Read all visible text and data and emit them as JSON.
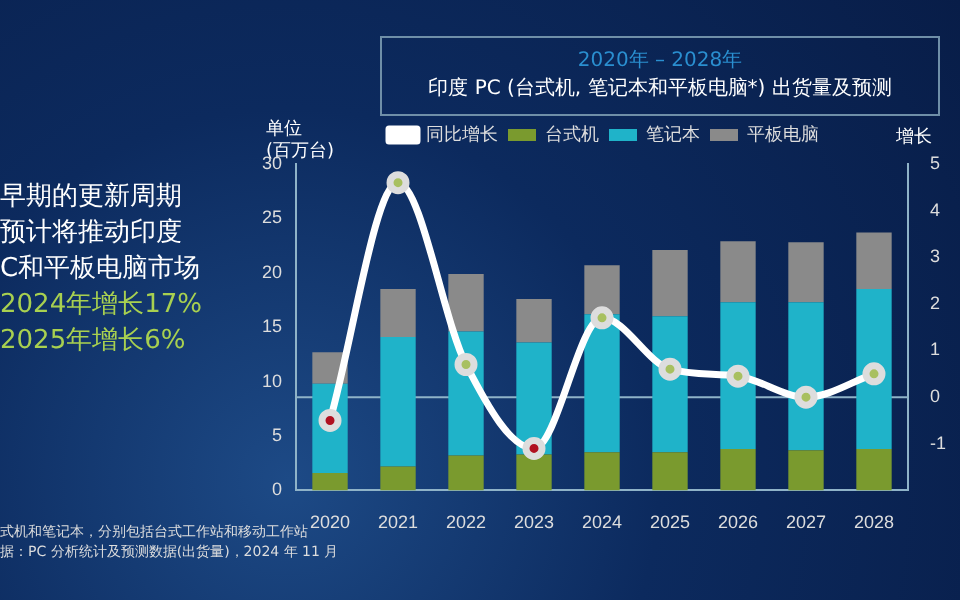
{
  "chart_data": {
    "type": "bar",
    "title": "2020年 – 2028年",
    "subtitle": "印度 PC (台式机, 笔记本和平板电脑*) 出货量及预测",
    "ylabel": "单位\n(百万台)",
    "y2label": "增长",
    "categories": [
      "2020",
      "2021",
      "2022",
      "2023",
      "2024",
      "2025",
      "2026",
      "2027",
      "2028"
    ],
    "stacked": true,
    "series": [
      {
        "name": "台式机",
        "color": "#7a9a2e",
        "values": [
          1.6,
          2.2,
          3.2,
          3.3,
          3.5,
          3.5,
          3.8,
          3.7,
          3.8
        ]
      },
      {
        "name": "笔记本",
        "color": "#1fb3c9",
        "values": [
          8.2,
          11.9,
          11.4,
          10.3,
          12.7,
          12.5,
          13.5,
          13.6,
          14.7
        ]
      },
      {
        "name": "平板电脑",
        "color": "#8a8a8a",
        "values": [
          2.9,
          4.4,
          5.3,
          4.0,
          4.5,
          6.1,
          5.6,
          5.5,
          5.2
        ]
      },
      {
        "name": "同比增长",
        "type": "line",
        "axis": "y2",
        "color": "#ffffff",
        "colors": [
          "#b01020",
          "#a8c060",
          "#a8c060",
          "#b01020",
          "#a8c060",
          "#a8c060",
          "#a8c060",
          "#a8c060",
          "#a8c060"
        ],
        "values": [
          -0.5,
          4.6,
          0.7,
          -1.1,
          1.7,
          0.6,
          0.45,
          0,
          0.5
        ]
      }
    ],
    "ylim": [
      0,
      30
    ],
    "yticks": [
      0,
      5,
      10,
      15,
      20,
      25,
      30
    ],
    "y2lim": [
      -2,
      5
    ],
    "y2ticks": [
      -1,
      0,
      1,
      2,
      3,
      4,
      5
    ],
    "ref_lines": [
      {
        "axis": "y2",
        "value": 0,
        "color": "#8fb3c8"
      }
    ],
    "legend": "top",
    "grid": false,
    "marker": "circle",
    "annotations": [
      "早期的更新周期",
      "预计将推动印度",
      "C和平板电脑市场",
      "2024年增长17%",
      "2025年增长6%",
      "式机和笔记本，分别包括台式工作站和移动工作站",
      "据：PC 分析统计及预测数据(出货量)，2024 年 11 月"
    ]
  }
}
